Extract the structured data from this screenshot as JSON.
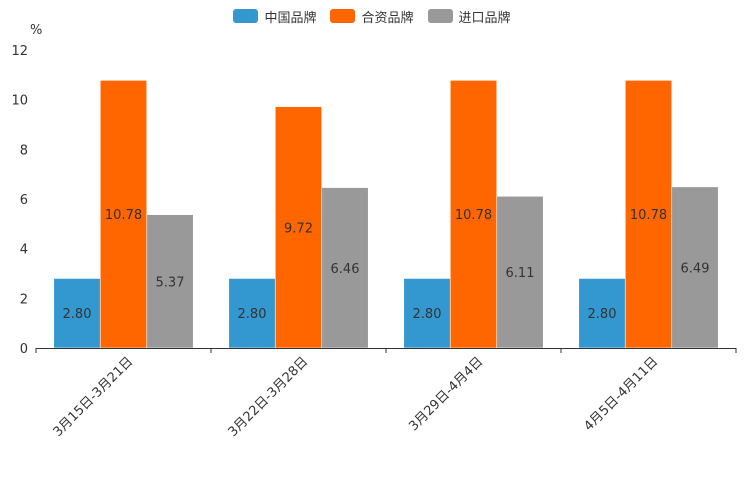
{
  "chart_data": {
    "type": "bar",
    "title": "",
    "xlabel": "",
    "ylabel": "%",
    "ylim": [
      0,
      12
    ],
    "yticks": [
      0,
      2,
      4,
      6,
      8,
      10,
      12
    ],
    "grid": false,
    "legend_position": "top-center",
    "categories": [
      "3月15日-3月21日",
      "3月22日-3月28日",
      "3月29日-4月4日",
      "4月5日-4月11日"
    ],
    "series": [
      {
        "name": "中国品牌",
        "color": "#3498d0",
        "values": [
          2.8,
          2.8,
          2.8,
          2.8
        ],
        "labels": [
          "2.80",
          "2.80",
          "2.80",
          "2.80"
        ]
      },
      {
        "name": "合资品牌",
        "color": "#ff6600",
        "values": [
          10.78,
          9.72,
          10.78,
          10.78
        ],
        "labels": [
          "10.78",
          "9.72",
          "10.78",
          "10.78"
        ]
      },
      {
        "name": "进口品牌",
        "color": "#999999",
        "values": [
          5.37,
          6.46,
          6.11,
          6.49
        ],
        "labels": [
          "5.37",
          "6.46",
          "6.11",
          "6.49"
        ]
      }
    ]
  }
}
